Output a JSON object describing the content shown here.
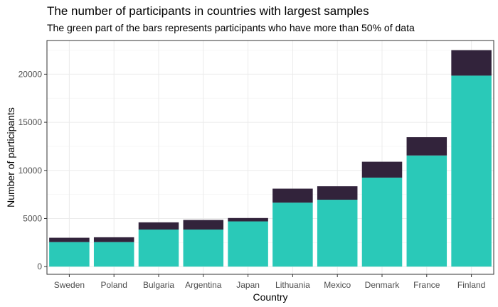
{
  "chart_data": {
    "type": "bar",
    "stacked": true,
    "title": "The number of participants in countries with largest samples",
    "subtitle": "The green part of the bars represents participants who have more than 50% of data",
    "xlabel": "Country",
    "ylabel": "Number of participants",
    "categories": [
      "Sweden",
      "Poland",
      "Bulgaria",
      "Argentina",
      "Japan",
      "Lithuania",
      "Mexico",
      "Denmark",
      "France",
      "Finland"
    ],
    "series": [
      {
        "values": [
          2550,
          2550,
          3850,
          3850,
          4700,
          6650,
          6950,
          9250,
          11550,
          19850
        ],
        "color": "#2ac9b8"
      },
      {
        "values": [
          450,
          500,
          750,
          1000,
          350,
          1450,
          1400,
          1650,
          1900,
          2650
        ],
        "color": "#32233b"
      }
    ],
    "totals": [
      3000,
      3050,
      4600,
      4850,
      5050,
      8100,
      8350,
      10900,
      13450,
      22500
    ],
    "ylim": [
      -800,
      23500
    ],
    "yticks": [
      0,
      5000,
      10000,
      15000,
      20000
    ],
    "grid": true,
    "legend": "none"
  }
}
